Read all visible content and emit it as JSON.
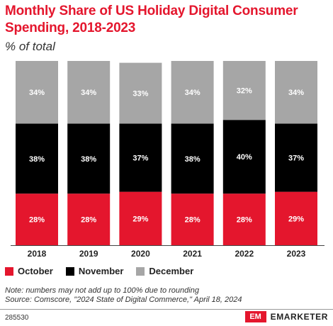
{
  "title": "Monthly Share of US Holiday Digital Consumer Spending, 2018-2023",
  "subtitle": "% of total",
  "legend": {
    "october": "October",
    "november": "November",
    "december": "December"
  },
  "notes": {
    "line1": "Note: numbers may not add up to 100% due to rounding",
    "line2": "Source: Comscore, \"2024 State of Digital Commerce,\" April 18, 2024"
  },
  "footer": {
    "chart_id": "285530",
    "logo": "EM",
    "brand": "EMARKETER"
  },
  "colors": {
    "october": "#e4162d",
    "november": "#000000",
    "december": "#a6a6a6",
    "title": "#e4162d"
  },
  "chart_data": {
    "type": "bar",
    "stacked": true,
    "categories": [
      "2018",
      "2019",
      "2020",
      "2021",
      "2022",
      "2023"
    ],
    "series": [
      {
        "name": "October",
        "values": [
          28,
          28,
          29,
          28,
          28,
          29
        ]
      },
      {
        "name": "November",
        "values": [
          38,
          38,
          37,
          38,
          40,
          37
        ]
      },
      {
        "name": "December",
        "values": [
          34,
          34,
          33,
          34,
          32,
          34
        ]
      }
    ],
    "value_suffix": "%"
  }
}
